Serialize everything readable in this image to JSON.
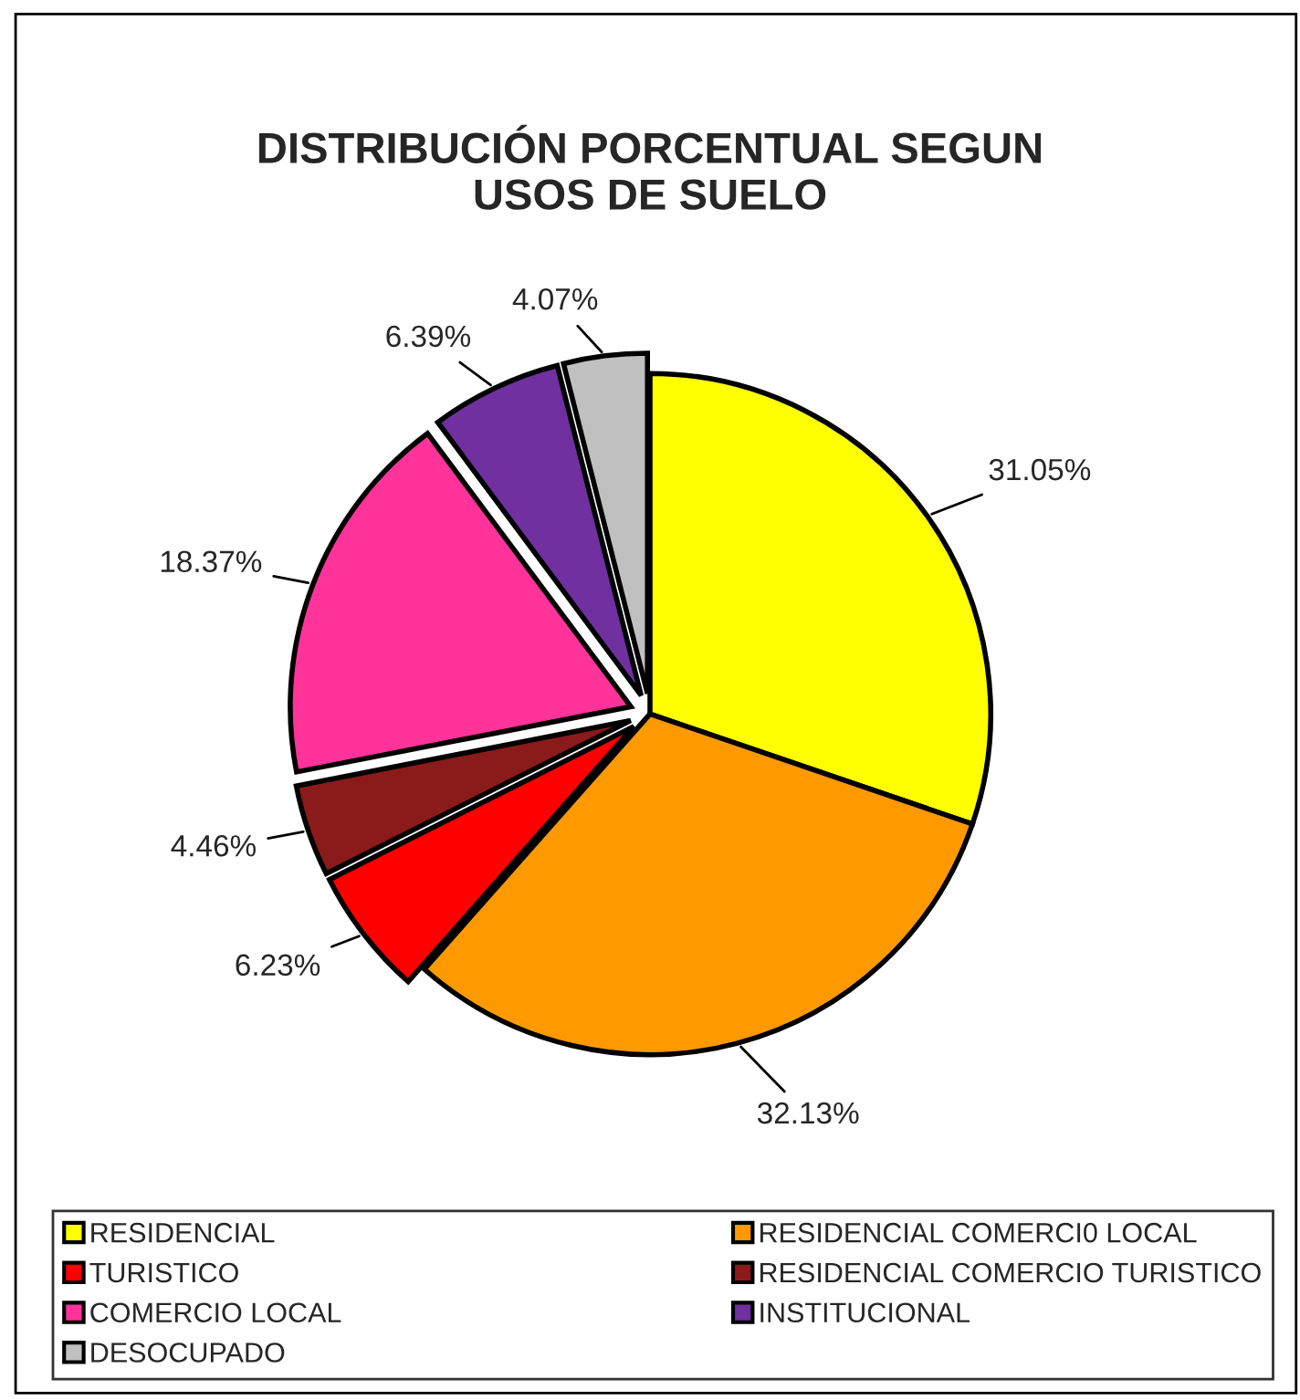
{
  "chart_data": {
    "type": "pie",
    "title": "DISTRIBUCIÓN PORCENTUAL SEGUN\nUSOS DE SUELO",
    "categories": [
      "RESIDENCIAL",
      "RESIDENCIAL COMERCI0 LOCAL",
      "TURISTICO",
      "RESIDENCIAL COMERCIO TURISTICO",
      "COMERCIO LOCAL",
      "INSTITUCIONAL",
      "DESOCUPADO"
    ],
    "values": [
      31.05,
      32.13,
      6.23,
      4.46,
      18.37,
      6.39,
      4.07
    ],
    "value_labels": [
      "31.05%",
      "32.13%",
      "6.23%",
      "4.46%",
      "18.37%",
      "6.39%",
      "4.07%"
    ],
    "colors": [
      "#ffff00",
      "#ff9900",
      "#ff0000",
      "#8b1a1a",
      "#ff3399",
      "#7030a0",
      "#c0c0c0"
    ],
    "legend": "bottom"
  }
}
